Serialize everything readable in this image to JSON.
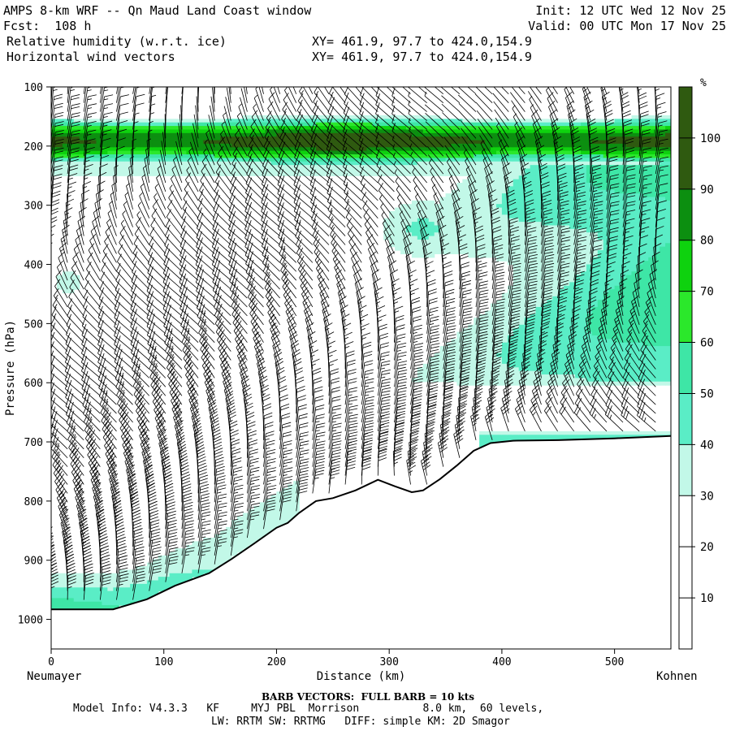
{
  "header": {
    "title": "AMPS 8-km WRF -- Qn Maud Land Coast window",
    "init": "Init: 12 UTC Wed 12 Nov 25",
    "fcst": "Fcst:  108 h",
    "valid": "Valid: 00 UTC Mon 17 Nov 25",
    "field1": "Relative humidity (w.r.t. ice)",
    "field2": "Horizontal wind vectors",
    "xy1": "XY= 461.9, 97.7 to 424.0,154.9",
    "xy2": "XY= 461.9, 97.7 to 424.0,154.9"
  },
  "footer": {
    "barb": "BARB VECTORS:  FULL BARB = 10 kts",
    "model_line1": "Model Info: V4.3.3   KF     MYJ PBL  Morrison          8.0 km,  60 levels,",
    "model_line2": "LW: RRTM SW: RRTMG   DIFF: simple KM: 2D Smagor"
  },
  "chart_data": {
    "type": "cross-section",
    "title": "Relative humidity (w.r.t. ice) and horizontal wind vectors",
    "xlabel": "Distance (km)",
    "ylabel": "Pressure (hPa)",
    "x_start_label": "Neumayer",
    "x_end_label": "Kohnen",
    "xlim": [
      0,
      550
    ],
    "ylim": [
      100,
      1050
    ],
    "xticks": [
      0,
      100,
      200,
      300,
      400,
      500
    ],
    "yticks": [
      100,
      200,
      300,
      400,
      500,
      600,
      700,
      800,
      900,
      1000
    ],
    "colorbar": {
      "unit": "%",
      "levels": [
        10,
        20,
        30,
        40,
        50,
        60,
        70,
        80,
        90,
        100
      ],
      "colors": [
        "#ffffff",
        "#ffffff",
        "#ffffff",
        "#c2f8e8",
        "#5aedc6",
        "#3ee6a6",
        "#2be82b",
        "#0ed20e",
        "#0c8f10",
        "#2f5a10"
      ]
    },
    "terrain": {
      "x": [
        0,
        55,
        85,
        110,
        140,
        160,
        180,
        200,
        210,
        220,
        235,
        250,
        270,
        290,
        305,
        320,
        330,
        345,
        360,
        375,
        390,
        410,
        450,
        500,
        550
      ],
      "p": [
        983,
        983,
        966,
        943,
        922,
        898,
        872,
        845,
        837,
        820,
        800,
        795,
        782,
        764,
        775,
        785,
        782,
        763,
        740,
        715,
        702,
        698,
        697,
        694,
        690
      ]
    },
    "rh_regions": [
      {
        "name": "upper moist layer",
        "p_top": 150,
        "p_bottom": 240,
        "rh_max": 100
      },
      {
        "name": "mid-level moisture east",
        "p_top": 240,
        "p_bottom": 600,
        "rh_max": 60
      },
      {
        "name": "low-level band east",
        "p_top": 620,
        "p_bottom": 700,
        "rh_max": 50
      },
      {
        "name": "surface moisture west",
        "p_top": 930,
        "p_bottom": 983,
        "rh_max": 70
      }
    ],
    "wind_barbs": {
      "columns_every_km": 14.5,
      "levels_hPa_spacing": 15,
      "speed_kts_range": [
        5,
        45
      ],
      "general_direction": "northerly to north-westerly"
    }
  }
}
